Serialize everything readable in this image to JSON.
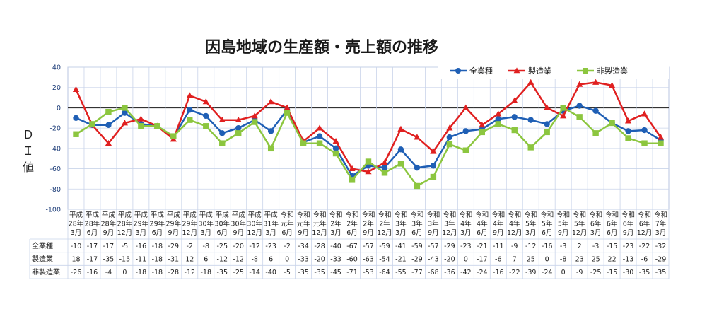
{
  "chart_data": {
    "type": "line",
    "title": "因島地域の生産額・売上額の推移",
    "ylabel": "ＤＩ値",
    "ylim": [
      -100,
      40
    ],
    "yticks": [
      40,
      20,
      0,
      -20,
      -40,
      -60,
      -80,
      -100
    ],
    "grid": true,
    "legend_position": "top-right",
    "categories": [
      [
        "平成",
        "28年",
        "3月"
      ],
      [
        "平成",
        "28年",
        "6月"
      ],
      [
        "平成",
        "28年",
        "9月"
      ],
      [
        "平成",
        "28年",
        "12月"
      ],
      [
        "平成",
        "29年",
        "3月"
      ],
      [
        "平成",
        "29年",
        "6月"
      ],
      [
        "平成",
        "29年",
        "9月"
      ],
      [
        "平成",
        "29年",
        "12月"
      ],
      [
        "平成",
        "30年",
        "3月"
      ],
      [
        "平成",
        "30年",
        "6月"
      ],
      [
        "平成",
        "30年",
        "9月"
      ],
      [
        "平成",
        "30年",
        "12月"
      ],
      [
        "平成",
        "31年",
        "3月"
      ],
      [
        "令和",
        "元年",
        "6月"
      ],
      [
        "令和",
        "元年",
        "9月"
      ],
      [
        "令和",
        "元年",
        "12月"
      ],
      [
        "令和",
        "2年",
        "3月"
      ],
      [
        "令和",
        "2年",
        "6月"
      ],
      [
        "令和",
        "2年",
        "9月"
      ],
      [
        "令和",
        "2年",
        "12月"
      ],
      [
        "令和",
        "3年",
        "3月"
      ],
      [
        "令和",
        "3年",
        "6月"
      ],
      [
        "令和",
        "3年",
        "9月"
      ],
      [
        "令和",
        "3年",
        "12月"
      ],
      [
        "令和",
        "4年",
        "3月"
      ],
      [
        "令和",
        "4年",
        "6月"
      ],
      [
        "令和",
        "4年",
        "9月"
      ],
      [
        "令和",
        "4年",
        "12月"
      ],
      [
        "令和",
        "5年",
        "3月"
      ],
      [
        "令和",
        "5年",
        "6月"
      ],
      [
        "令和",
        "5年",
        "9月"
      ],
      [
        "令和",
        "5年",
        "12月"
      ],
      [
        "令和",
        "6年",
        "3月"
      ],
      [
        "令和",
        "6年",
        "6月"
      ],
      [
        "令和",
        "6年",
        "9月"
      ],
      [
        "令和",
        "6年",
        "12月"
      ],
      [
        "令和",
        "7年",
        "3月"
      ]
    ],
    "series": [
      {
        "name": "全業種",
        "color": "#1f5fb5",
        "marker": "circle",
        "values": [
          -10,
          -17,
          -17,
          -5,
          -16,
          -18,
          -29,
          -2,
          -8,
          -25,
          -20,
          -12,
          -23,
          -2,
          -34,
          -28,
          -40,
          -67,
          -57,
          -59,
          -41,
          -59,
          -57,
          -29,
          -23,
          -21,
          -11,
          -9,
          -12,
          -16,
          -3,
          2,
          -3,
          -15,
          -23,
          -22,
          -32
        ]
      },
      {
        "name": "製造業",
        "color": "#e02020",
        "marker": "triangle",
        "values": [
          18,
          -17,
          -35,
          -15,
          -11,
          -18,
          -31,
          12,
          6,
          -12,
          -12,
          -8,
          6,
          0,
          -33,
          -20,
          -33,
          -60,
          -63,
          -54,
          -21,
          -29,
          -43,
          -20,
          0,
          -17,
          -6,
          7,
          25,
          0,
          -8,
          23,
          25,
          22,
          -13,
          -6,
          -29
        ]
      },
      {
        "name": "非製造業",
        "color": "#8cc63f",
        "marker": "square",
        "values": [
          -26,
          -16,
          -4,
          0,
          -18,
          -18,
          -28,
          -12,
          -18,
          -35,
          -25,
          -14,
          -40,
          -5,
          -35,
          -35,
          -45,
          -71,
          -53,
          -64,
          -55,
          -77,
          -68,
          -36,
          -42,
          -24,
          -16,
          -22,
          -39,
          -24,
          0,
          -9,
          -25,
          -15,
          -30,
          -35,
          -35
        ]
      }
    ]
  }
}
